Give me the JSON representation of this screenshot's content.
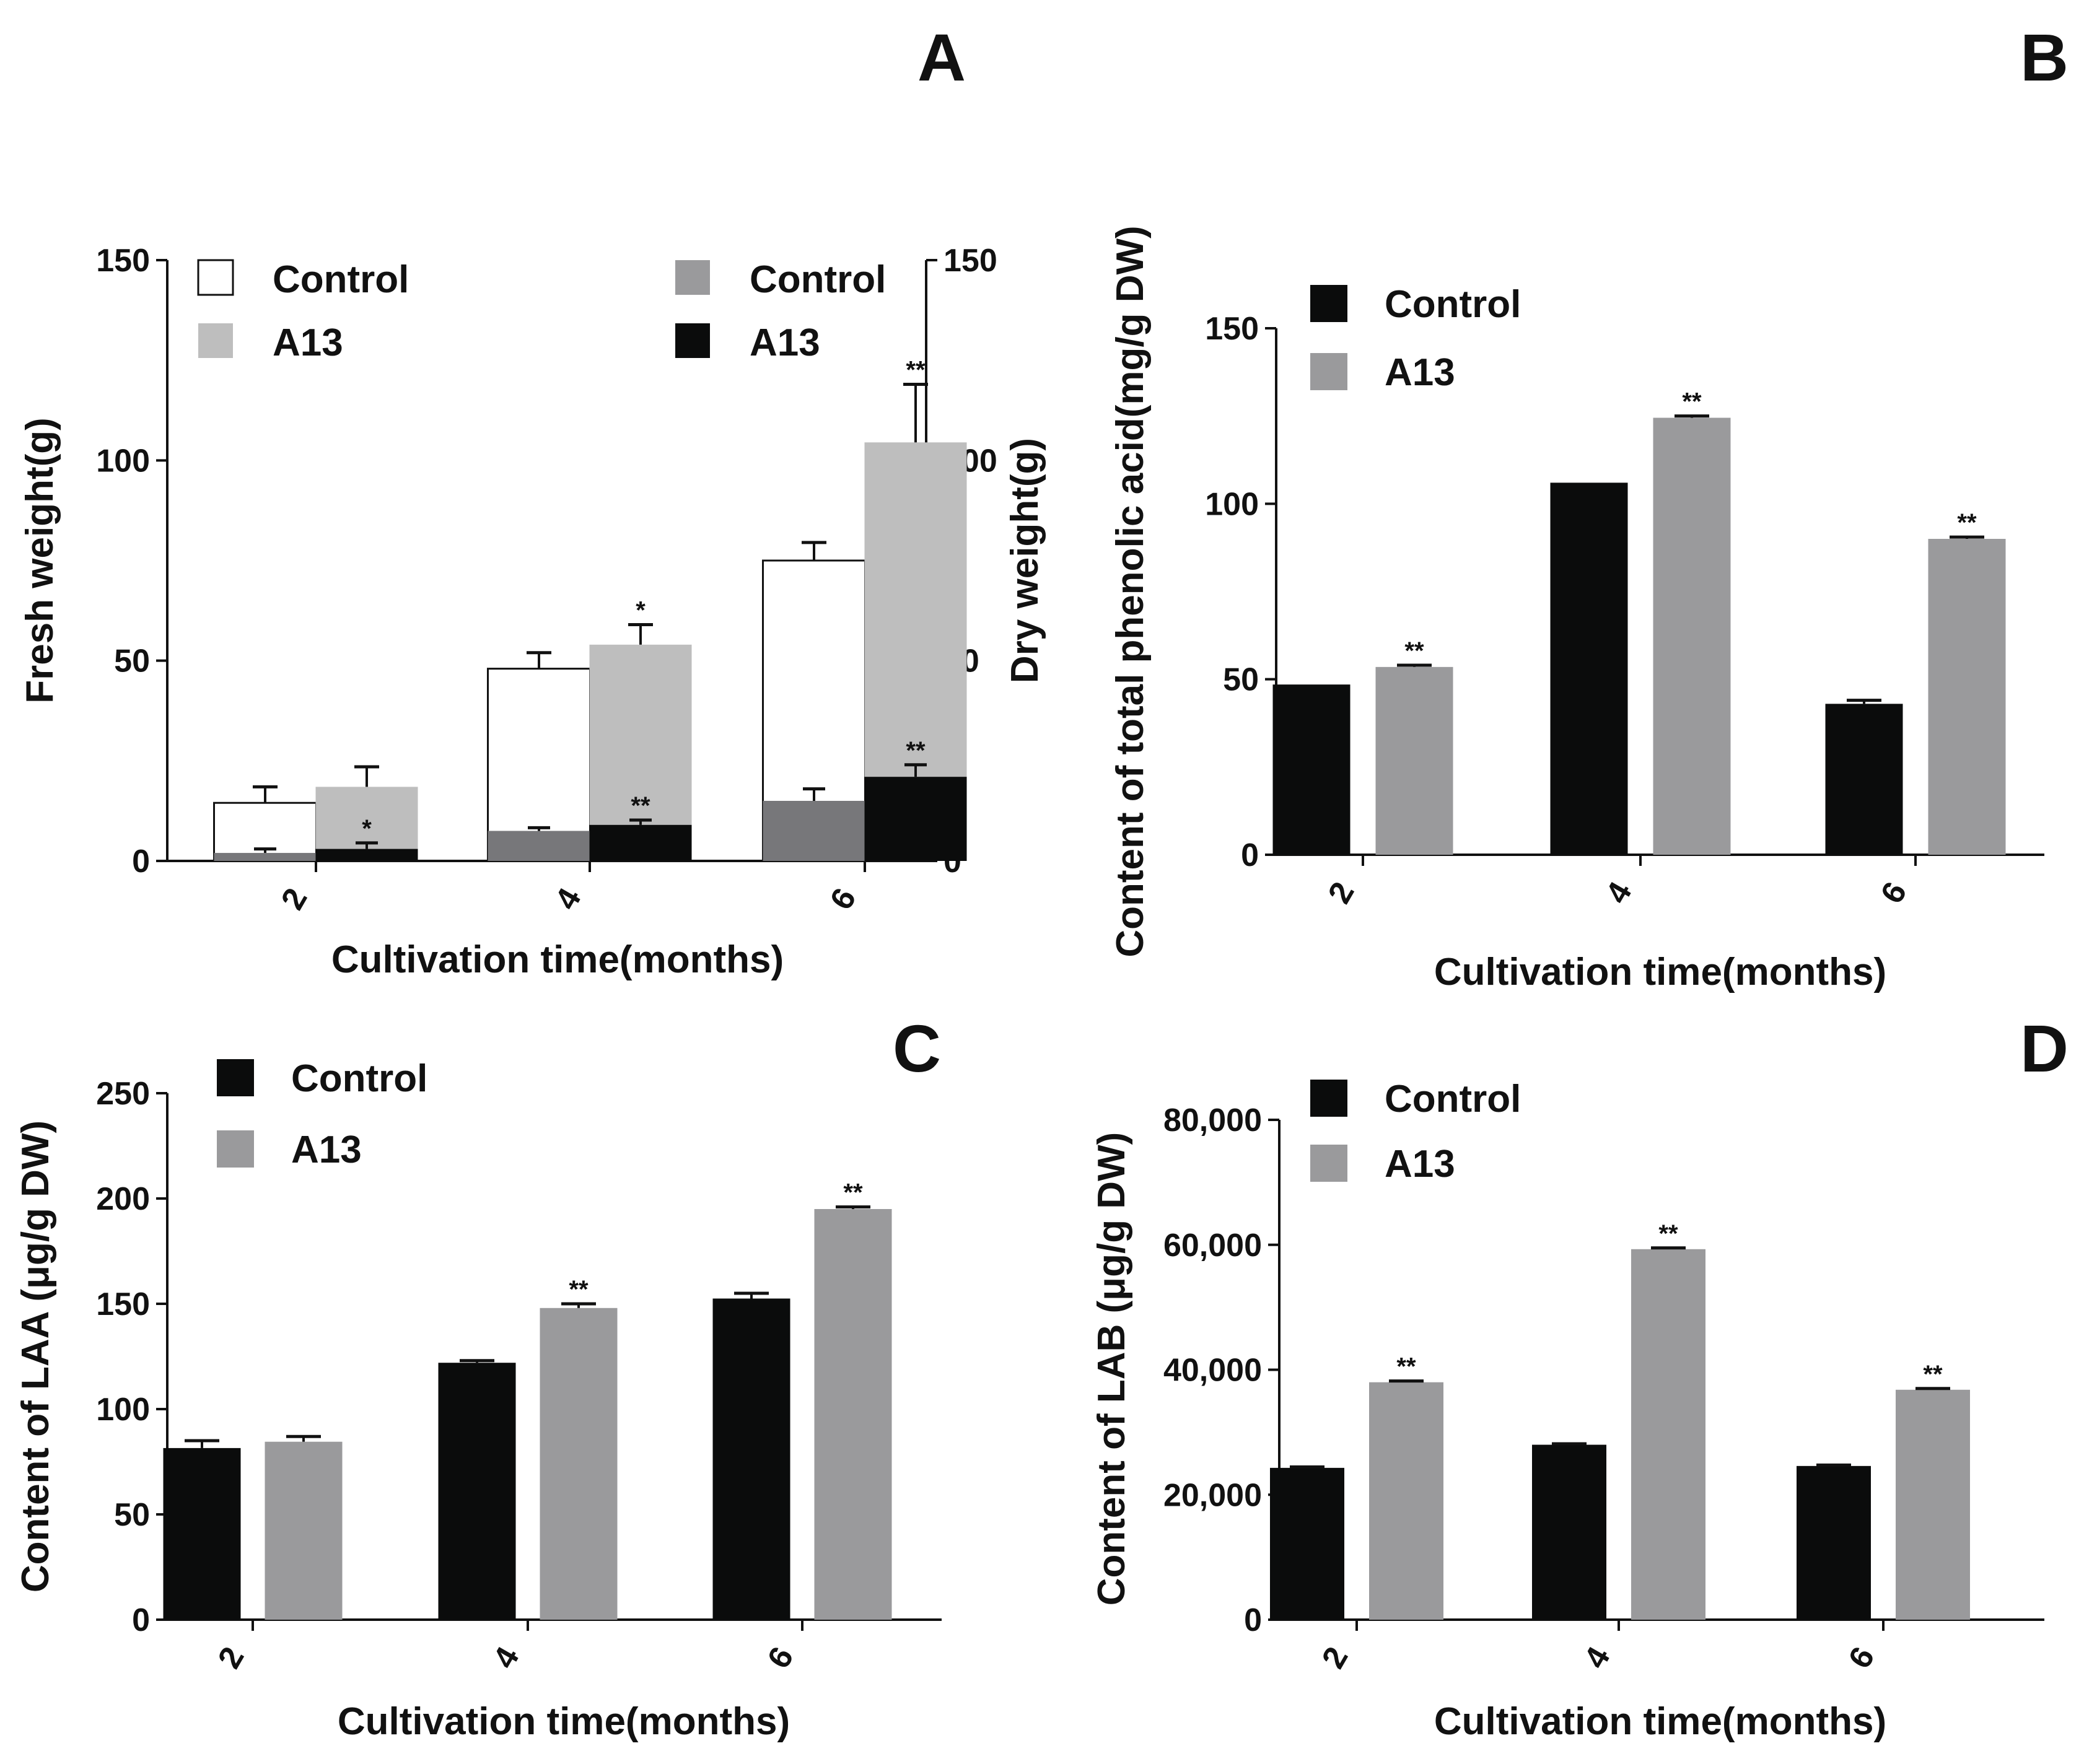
{
  "chart_data": [
    {
      "id": "A",
      "type": "bar",
      "panel_label": "A",
      "categories": [
        "2",
        "4",
        "6"
      ],
      "xlabel": "Cultivation time(months)",
      "ylabel": "Fresh weight(g)",
      "ylabel_right": "Dry weight(g)",
      "ylim": [
        0,
        150
      ],
      "yticks": [
        "0",
        "50",
        "100",
        "150"
      ],
      "yticks_right": [
        "0",
        "50",
        "100",
        "150"
      ],
      "legend": [
        {
          "name": "Control",
          "color": "#ffffff"
        },
        {
          "name": "A13",
          "color": "#bebebe"
        },
        {
          "name": "Control",
          "color": "#9a9a9c"
        },
        {
          "name": "A13",
          "color": "#0b0c0c"
        }
      ],
      "fresh_weight": [
        {
          "name": "Control",
          "color": "#ffffff",
          "values": [
            14.5,
            48,
            75
          ],
          "errors": [
            4,
            4,
            4.5
          ],
          "stars": [
            "",
            "",
            ""
          ]
        },
        {
          "name": "A13",
          "color": "#bebebe",
          "values": [
            18.5,
            54,
            104.5
          ],
          "errors": [
            5,
            5,
            14.5
          ],
          "stars": [
            "",
            "*",
            "**"
          ]
        }
      ],
      "dry_weight": [
        {
          "name": "Control",
          "color": "#77777a",
          "values": [
            2,
            7.5,
            15
          ],
          "errors": [
            1,
            0.8,
            3
          ],
          "stars": [
            "",
            "",
            ""
          ]
        },
        {
          "name": "A13",
          "color": "#0b0c0c",
          "values": [
            3,
            9,
            21
          ],
          "errors": [
            1.5,
            1.2,
            3
          ],
          "stars": [
            "*",
            "**",
            "**"
          ]
        }
      ]
    },
    {
      "id": "B",
      "type": "bar",
      "panel_label": "B",
      "categories": [
        "2",
        "4",
        "6"
      ],
      "xlabel": "Cultivation time(months)",
      "ylabel": "Content of total phenolic acid(mg/g DW)",
      "ylim": [
        0,
        150
      ],
      "yticks": [
        "0",
        "50",
        "100",
        "150"
      ],
      "series": [
        {
          "name": "Control",
          "color": "#0b0c0c",
          "values": [
            48.5,
            106,
            43
          ],
          "errors": [
            0,
            0,
            1
          ],
          "stars": [
            "",
            "",
            ""
          ]
        },
        {
          "name": "A13",
          "color": "#9a9a9c",
          "values": [
            53.5,
            124.5,
            90
          ],
          "errors": [
            0.5,
            0.5,
            0.5
          ],
          "stars": [
            "**",
            "**",
            "**"
          ]
        }
      ]
    },
    {
      "id": "C",
      "type": "bar",
      "panel_label": "C",
      "categories": [
        "2",
        "4",
        "6"
      ],
      "xlabel": "Cultivation time(months)",
      "ylabel": "Content of LAA (μg/g DW)",
      "ylim": [
        0,
        250
      ],
      "yticks": [
        "0",
        "50",
        "100",
        "150",
        "200",
        "250"
      ],
      "series": [
        {
          "name": "Control",
          "color": "#0b0c0c",
          "values": [
            81.5,
            122,
            152.5
          ],
          "errors": [
            3.5,
            1,
            2.5
          ],
          "stars": [
            "",
            "",
            ""
          ]
        },
        {
          "name": "A13",
          "color": "#9a9a9c",
          "values": [
            84.5,
            148,
            195
          ],
          "errors": [
            2.5,
            2,
            1
          ],
          "stars": [
            "",
            "**",
            "**"
          ]
        }
      ]
    },
    {
      "id": "D",
      "type": "bar",
      "panel_label": "D",
      "categories": [
        "2",
        "4",
        "6"
      ],
      "xlabel": "Cultivation time(months)",
      "ylabel": "Content of LAB (μg/g DW)",
      "ylim": [
        0,
        80000
      ],
      "yticks": [
        "0",
        "20,000",
        "40,000",
        "60,000",
        "80,000"
      ],
      "series": [
        {
          "name": "Control",
          "color": "#0b0c0c",
          "values": [
            24300,
            28000,
            24600
          ],
          "errors": [
            150,
            150,
            150
          ],
          "stars": [
            "",
            "",
            ""
          ]
        },
        {
          "name": "A13",
          "color": "#9a9a9c",
          "values": [
            38000,
            59300,
            36800
          ],
          "errors": [
            200,
            200,
            200
          ],
          "stars": [
            "**",
            "**",
            "**"
          ]
        }
      ]
    }
  ]
}
